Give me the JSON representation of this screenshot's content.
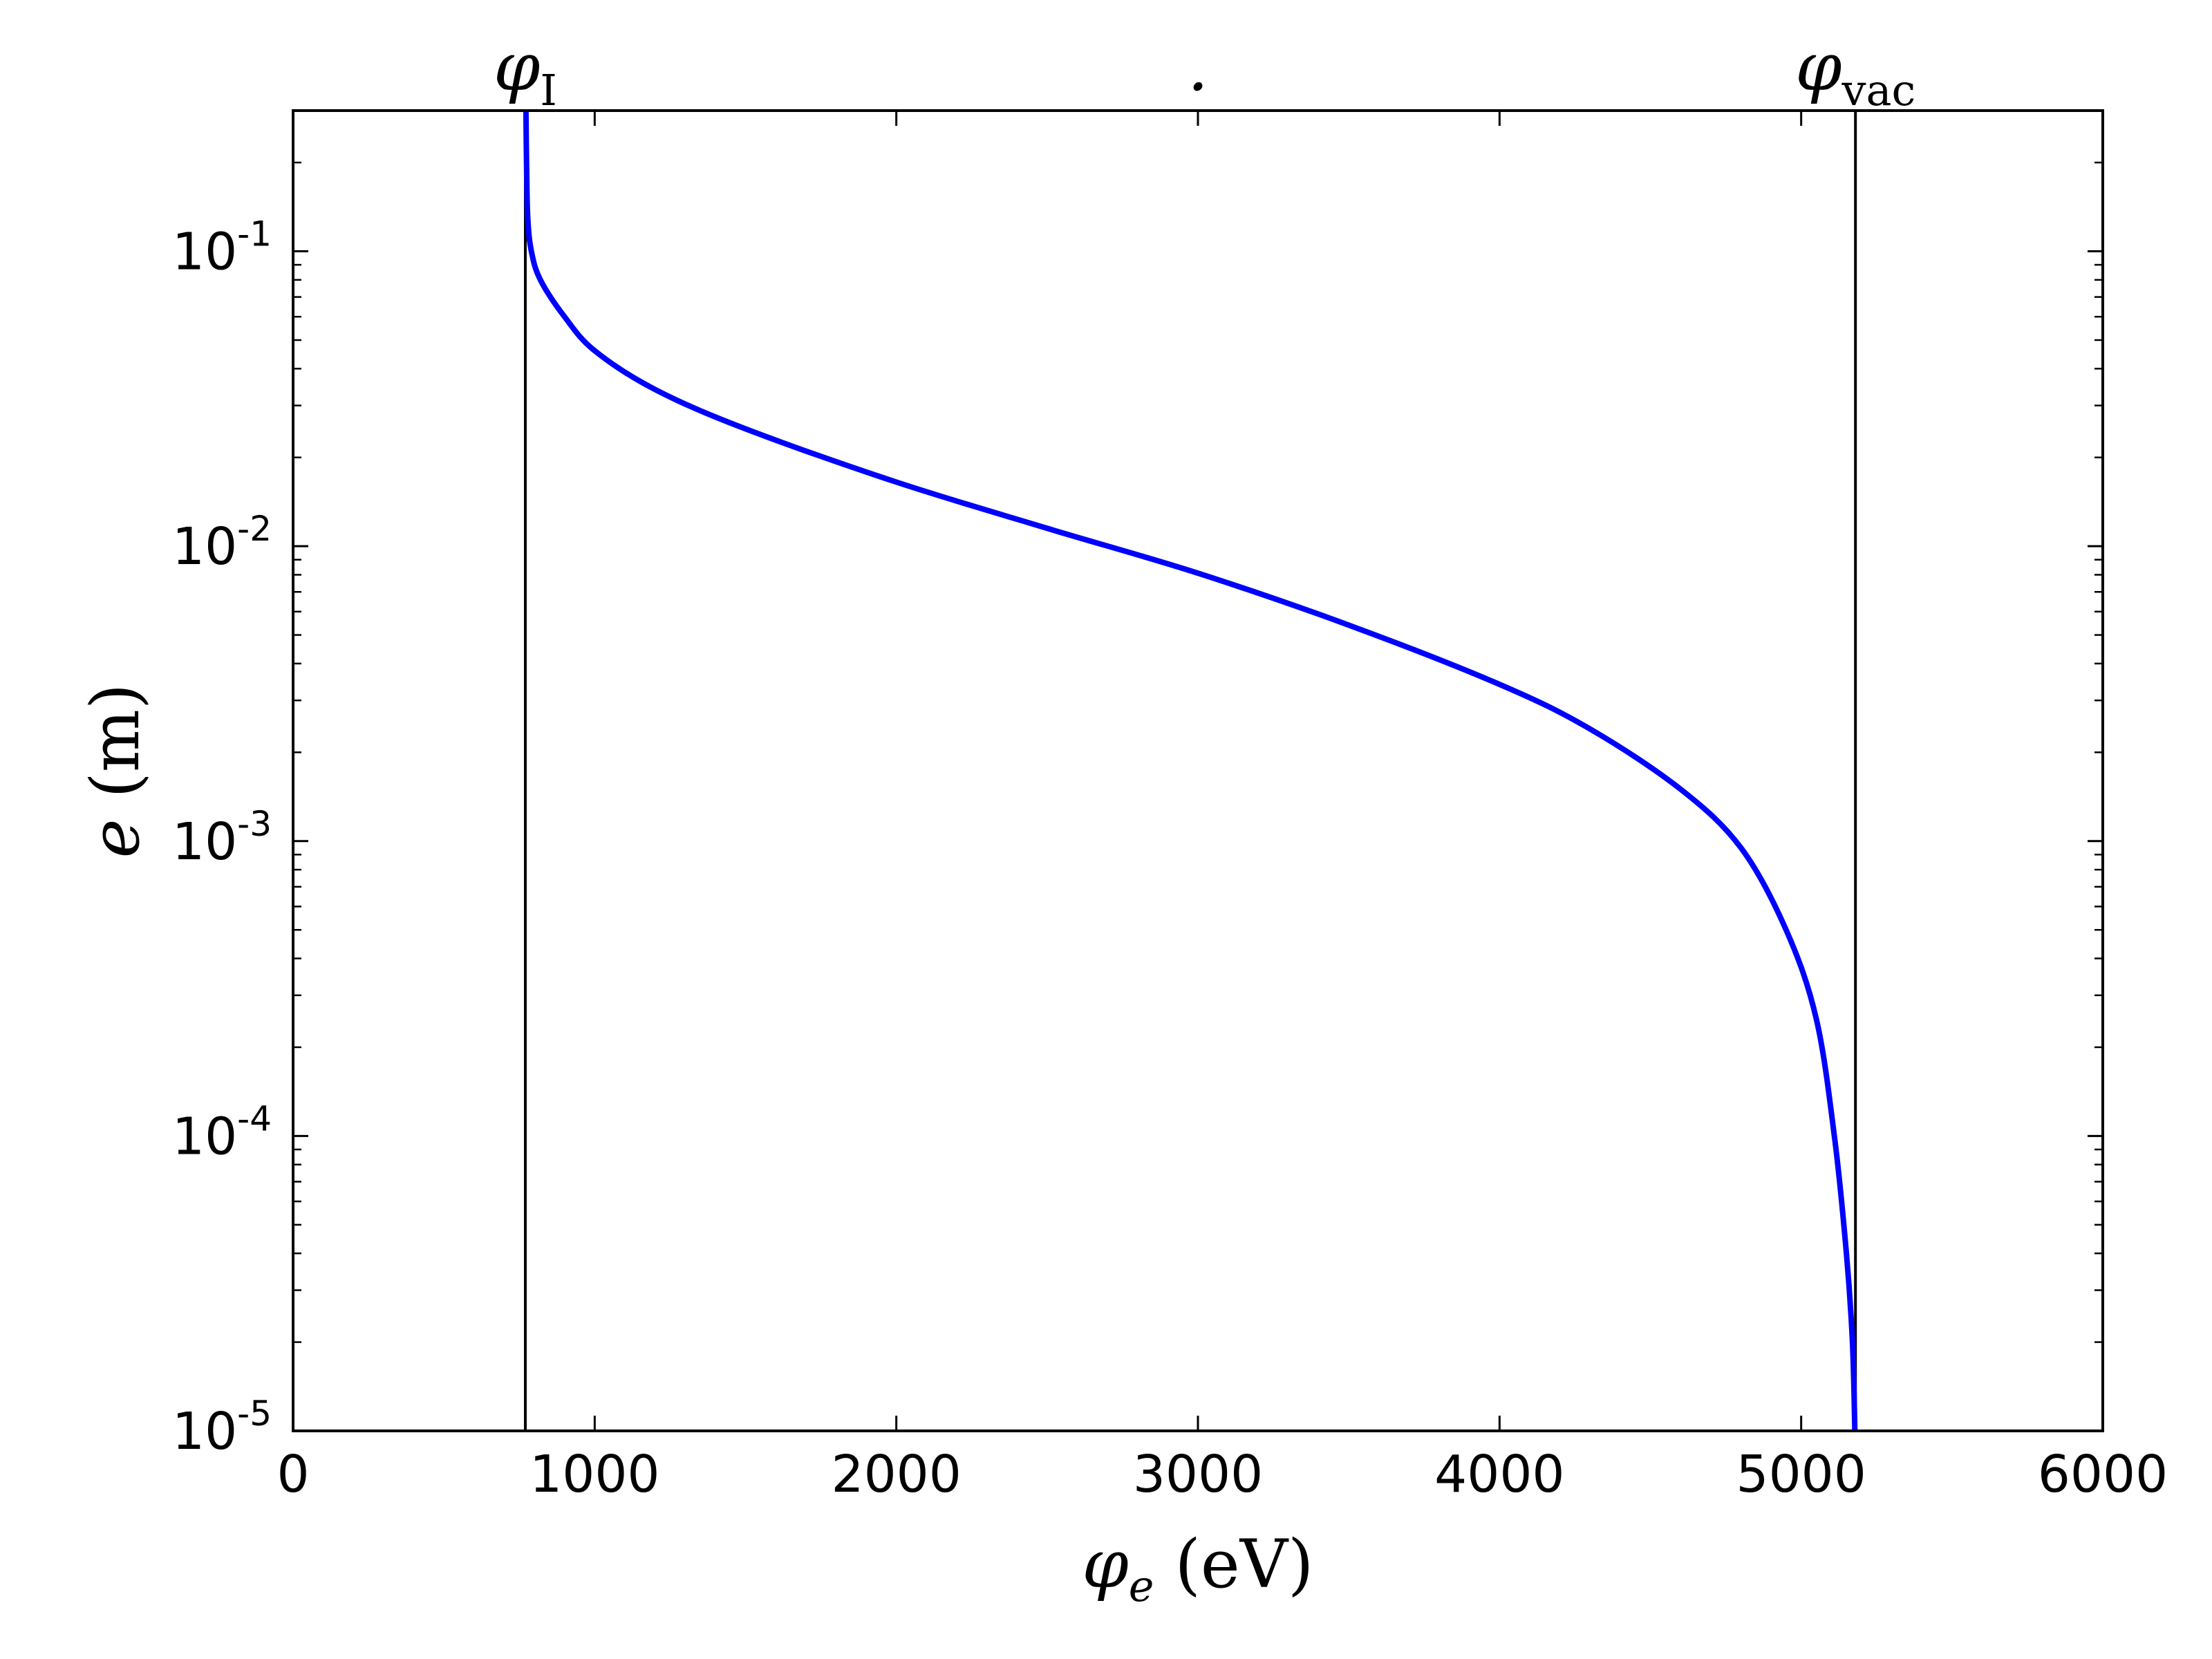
{
  "chart_data": {
    "type": "line",
    "x_scale": "linear",
    "y_scale": "log",
    "xlim": [
      0,
      6000
    ],
    "ylim": [
      1e-05,
      0.3
    ],
    "xlabel": {
      "symbol": "φ",
      "subscript": "e",
      "unit": "(eV)"
    },
    "ylabel": {
      "symbol": "e",
      "unit": "(m)"
    },
    "x_ticks": [
      {
        "value": 0,
        "label": "0"
      },
      {
        "value": 1000,
        "label": "1000"
      },
      {
        "value": 2000,
        "label": "2000"
      },
      {
        "value": 3000,
        "label": "3000"
      },
      {
        "value": 4000,
        "label": "4000"
      },
      {
        "value": 5000,
        "label": "5000"
      },
      {
        "value": 6000,
        "label": "6000"
      }
    ],
    "y_ticks": [
      {
        "value": 1e-05,
        "base": "10",
        "exp": "-5"
      },
      {
        "value": 0.0001,
        "base": "10",
        "exp": "-4"
      },
      {
        "value": 0.001,
        "base": "10",
        "exp": "-3"
      },
      {
        "value": 0.01,
        "base": "10",
        "exp": "-2"
      },
      {
        "value": 0.1,
        "base": "10",
        "exp": "-1"
      }
    ],
    "top_annotations": [
      {
        "value": 770,
        "symbol": "φ",
        "subscript": "I"
      },
      {
        "value": 3000,
        "symbol": ".",
        "subscript": ""
      },
      {
        "value": 5180,
        "symbol": "φ",
        "subscript": "vac"
      }
    ],
    "vertical_lines": [
      {
        "x": 770,
        "color": "#000000"
      },
      {
        "x": 5180,
        "color": "#000000"
      }
    ],
    "series": [
      {
        "color": "#0000ff",
        "points": [
          [
            772,
            0.3
          ],
          [
            774,
            0.2
          ],
          [
            778,
            0.13
          ],
          [
            790,
            0.1
          ],
          [
            820,
            0.08
          ],
          [
            900,
            0.06
          ],
          [
            1000,
            0.046
          ],
          [
            1200,
            0.034
          ],
          [
            1500,
            0.025
          ],
          [
            2000,
            0.0165
          ],
          [
            2500,
            0.0115
          ],
          [
            3000,
            0.0081
          ],
          [
            3500,
            0.0054
          ],
          [
            4000,
            0.0034
          ],
          [
            4300,
            0.0024
          ],
          [
            4600,
            0.0015
          ],
          [
            4800,
            0.00095
          ],
          [
            4950,
            0.0005
          ],
          [
            5050,
            0.00025
          ],
          [
            5110,
            0.0001
          ],
          [
            5150,
            4e-05
          ],
          [
            5170,
            2e-05
          ],
          [
            5178,
            1e-05
          ]
        ]
      }
    ],
    "grid": false
  }
}
